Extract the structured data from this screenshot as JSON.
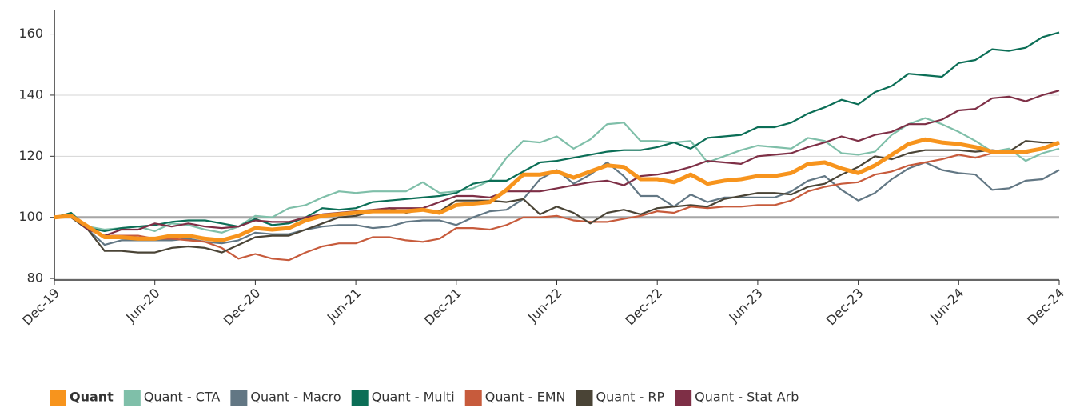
{
  "chart_data": {
    "type": "line",
    "categories": [
      "Dec-19",
      null,
      null,
      null,
      null,
      null,
      "Jun-20",
      null,
      null,
      null,
      null,
      null,
      "Dec-20",
      null,
      null,
      null,
      null,
      null,
      "Jun-21",
      null,
      null,
      null,
      null,
      null,
      "Dec-21",
      null,
      null,
      null,
      null,
      null,
      "Jun-22",
      null,
      null,
      null,
      null,
      null,
      "Dec-22",
      null,
      null,
      null,
      null,
      null,
      "Jun-23",
      null,
      null,
      null,
      null,
      null,
      "Dec-23",
      null,
      null,
      null,
      null,
      null,
      "Jun-24",
      null,
      null,
      null,
      null,
      null,
      "Dec-24"
    ],
    "ylim": [
      79.5,
      168
    ],
    "yticks": [
      80,
      100,
      120,
      140,
      160
    ],
    "grid": true,
    "reference_line": 100,
    "legend": "bottom",
    "series": [
      {
        "name": "Quant",
        "color": "#f7941d",
        "values": [
          100,
          100.5,
          97,
          93.5,
          93.5,
          93,
          93,
          94,
          94,
          93,
          92.5,
          94,
          96.5,
          96,
          96.5,
          99,
          100.5,
          101,
          101.5,
          102,
          102,
          102,
          102.5,
          101.5,
          104,
          104.5,
          105,
          109,
          114,
          114,
          115,
          113,
          115,
          117,
          116.5,
          112.5,
          112.5,
          111.5,
          114,
          111,
          112,
          112.5,
          113.5,
          113.5,
          114.5,
          117.5,
          118,
          116,
          114.5,
          117,
          120.5,
          124,
          125.5,
          124.5,
          124,
          123,
          121.5,
          121.5,
          121.5,
          122.5,
          124.5
        ]
      },
      {
        "name": "Quant - CTA",
        "color": "#7fbfa9",
        "values": [
          100,
          100.5,
          97,
          96,
          96.5,
          97,
          95.5,
          98,
          97.5,
          96,
          95,
          97,
          100.5,
          100,
          103,
          104,
          106.5,
          108.5,
          108,
          108.5,
          108.5,
          108.5,
          111.5,
          108,
          108.5,
          109.5,
          112,
          119.5,
          125,
          124.5,
          126.5,
          122.5,
          125.5,
          130.5,
          131,
          125,
          125,
          124.5,
          125,
          118,
          120,
          122,
          123.5,
          123,
          122.5,
          126,
          125,
          121,
          120.5,
          121.5,
          127,
          130.5,
          132.5,
          130.5,
          128,
          125,
          121.5,
          122.5,
          118.5,
          121,
          122.5
        ]
      },
      {
        "name": "Quant - Macro",
        "color": "#627784",
        "values": [
          100,
          100,
          96,
          91,
          92.5,
          92.5,
          92.5,
          92.5,
          93,
          92,
          91.5,
          92.5,
          95,
          94.5,
          94.5,
          96,
          97,
          97.5,
          97.5,
          96.5,
          97,
          98.5,
          99,
          99,
          97.5,
          100,
          102,
          102.5,
          106,
          112.5,
          115.5,
          111,
          114,
          118,
          113.5,
          107,
          107,
          103.5,
          107.5,
          105,
          106.5,
          106.5,
          106.5,
          106.5,
          108.5,
          112,
          113.5,
          109,
          105.5,
          108,
          112.5,
          116,
          118,
          115.5,
          114.5,
          114,
          109,
          109.5,
          112,
          112.5,
          115.5
        ]
      },
      {
        "name": "Quant - Multi",
        "color": "#0b6e56",
        "values": [
          100,
          101.5,
          96.5,
          95.5,
          96.5,
          97,
          97.5,
          98.5,
          99,
          99,
          98,
          97,
          99.5,
          97.5,
          98,
          100,
          103,
          102.5,
          103,
          105,
          105.5,
          106,
          106.5,
          107,
          108,
          111,
          112,
          112,
          115,
          118,
          118.5,
          119.5,
          120.5,
          121.5,
          122,
          122,
          123,
          124.5,
          122.5,
          126,
          126.5,
          127,
          129.5,
          129.5,
          131,
          134,
          136,
          138.5,
          137,
          141,
          143,
          147,
          146.5,
          146,
          150.5,
          151.5,
          155,
          154.5,
          155.5,
          159,
          160.5
        ]
      },
      {
        "name": "Quant - EMN",
        "color": "#c75b3c",
        "values": [
          100,
          100,
          96.5,
          94,
          94,
          94,
          93,
          93,
          92.5,
          92,
          90,
          86.5,
          88,
          86.5,
          86,
          88.5,
          90.5,
          91.5,
          91.5,
          93.5,
          93.5,
          92.5,
          92,
          93,
          96.5,
          96.5,
          96,
          97.5,
          100,
          100,
          100.5,
          99,
          98.5,
          98.5,
          99.5,
          100.5,
          102,
          101.5,
          103.5,
          103,
          103.5,
          103.5,
          104,
          104,
          105.5,
          108.5,
          110,
          111,
          111.5,
          114,
          115,
          117,
          118,
          119,
          120.5,
          119.5,
          121,
          121,
          121,
          122.5,
          124.5
        ]
      },
      {
        "name": "Quant - RP",
        "color": "#4a4436",
        "values": [
          100,
          100,
          96,
          89,
          89,
          88.5,
          88.5,
          90,
          90.5,
          90,
          88.5,
          91,
          93.5,
          94,
          94,
          96,
          98,
          100,
          100.5,
          102,
          103,
          101.5,
          102.5,
          102,
          105.5,
          105.5,
          105.5,
          105,
          106,
          101,
          103.5,
          101.5,
          98,
          101.5,
          102.5,
          101,
          103,
          103.5,
          104,
          103.5,
          106,
          107,
          108,
          108,
          107.5,
          110,
          111,
          114,
          116.5,
          120,
          119,
          121,
          122,
          122,
          122,
          121.5,
          122,
          121.5,
          125,
          124.5,
          124.5
        ]
      },
      {
        "name": "Quant - Stat Arb",
        "color": "#7e2f46",
        "values": [
          100,
          100.5,
          96,
          94,
          96,
          96,
          98,
          97,
          98,
          97,
          96.5,
          97,
          99,
          98.5,
          98.5,
          100,
          101,
          101.5,
          102,
          102.5,
          103,
          103,
          103,
          105,
          107,
          107,
          106.5,
          108.5,
          108.5,
          108.5,
          109.5,
          110.5,
          111.5,
          112,
          110.5,
          113.5,
          114,
          115,
          116.5,
          118.5,
          118,
          117.5,
          120,
          120.5,
          121,
          123,
          124.5,
          126.5,
          125,
          127,
          128,
          130.5,
          130.5,
          132,
          135,
          135.5,
          139,
          139.5,
          138,
          140,
          141.5
        ]
      }
    ]
  }
}
